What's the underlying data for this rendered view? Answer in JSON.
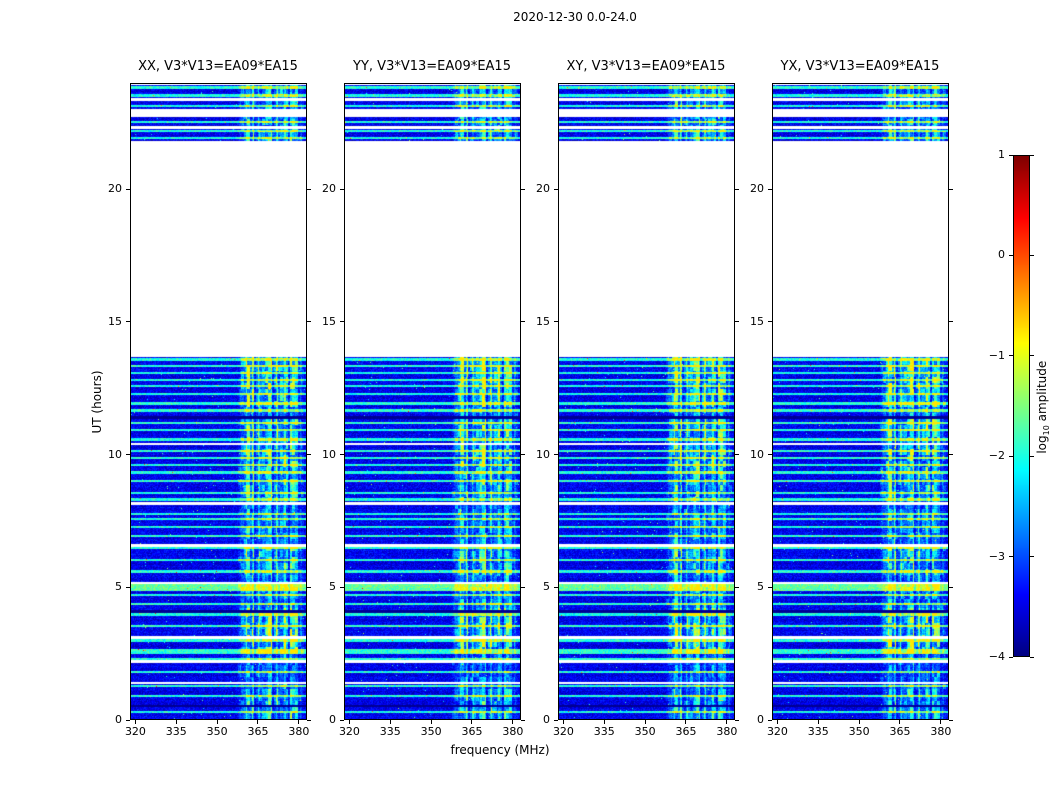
{
  "chart_data": {
    "type": "heatmap",
    "title": "2020-12-30 0.0-24.0",
    "xlabel": "frequency (MHz)",
    "ylabel": "UT (hours)",
    "panels": [
      {
        "title": "XX, V3*V13=EA09*EA15"
      },
      {
        "title": "YY, V3*V13=EA09*EA15"
      },
      {
        "title": "XY, V3*V13=EA09*EA15"
      },
      {
        "title": "YX, V3*V13=EA09*EA15"
      }
    ],
    "x": {
      "min": 318,
      "max": 383,
      "ticks": [
        320,
        335,
        350,
        365,
        380
      ]
    },
    "y": {
      "min": 0,
      "max": 24,
      "ticks": [
        0,
        5,
        10,
        15,
        20
      ]
    },
    "colorbar": {
      "label": "log10 amplitude",
      "label_pre": "log",
      "label_sub": "10",
      "label_post": " amplitude",
      "min": -4,
      "max": 1,
      "ticks": [
        "1",
        "0",
        "−1",
        "−2",
        "−3",
        "−4"
      ],
      "tick_values": [
        1,
        0,
        -1,
        -2,
        -3,
        -4
      ],
      "colormap": "jet"
    },
    "value_range": [
      -4,
      1
    ],
    "data_segments": [
      [
        0,
        13.7
      ],
      [
        21.85,
        22.3
      ],
      [
        22.4,
        22.75
      ],
      [
        23.05,
        23.35
      ],
      [
        23.45,
        23.95
      ]
    ],
    "noise": {
      "base": -3.45,
      "spread": 0.6
    },
    "rfi_band": {
      "fmin": 357.5,
      "fmax": 382,
      "blocks": [
        [
          0,
          1.2,
          1.7
        ],
        [
          1.2,
          2.5,
          1.1
        ],
        [
          2.5,
          4.25,
          2.4
        ],
        [
          4.25,
          5.5,
          1.5
        ],
        [
          5.5,
          6.65,
          2.0
        ],
        [
          6.65,
          8.4,
          1.4
        ],
        [
          8.4,
          9.5,
          1.9
        ],
        [
          9.5,
          11.35,
          2.2
        ],
        [
          11.35,
          11.8,
          1.3
        ],
        [
          11.8,
          13.7,
          2.3
        ],
        [
          21.85,
          24,
          1.6
        ]
      ]
    },
    "stripes": [
      {
        "t": 0.32,
        "type": "bright"
      },
      {
        "t": 0.55,
        "type": "dark"
      },
      {
        "t": 0.92,
        "type": "bright"
      },
      {
        "t": 1.3,
        "type": "bright"
      },
      {
        "t": 1.42,
        "type": "white"
      },
      {
        "t": 1.82,
        "type": "bright"
      },
      {
        "t": 2.22,
        "type": "white",
        "w": 0.05
      },
      {
        "t": 2.32,
        "type": "bright"
      },
      {
        "t": 2.6,
        "type": "bright",
        "w": 0.09
      },
      {
        "t": 3.02,
        "type": "bright"
      },
      {
        "t": 3.12,
        "type": "white"
      },
      {
        "t": 3.55,
        "type": "bright"
      },
      {
        "t": 4.0,
        "type": "bright"
      },
      {
        "t": 4.1,
        "type": "dark"
      },
      {
        "t": 4.38,
        "type": "bright"
      },
      {
        "t": 4.72,
        "type": "bright"
      },
      {
        "t": 5.0,
        "type": "bright",
        "w": 0.13,
        "amp": 1.8
      },
      {
        "t": 5.18,
        "type": "white"
      },
      {
        "t": 5.62,
        "type": "bright"
      },
      {
        "t": 6.05,
        "type": "bright"
      },
      {
        "t": 6.5,
        "type": "bright"
      },
      {
        "t": 6.6,
        "type": "white"
      },
      {
        "t": 6.95,
        "type": "bright"
      },
      {
        "t": 7.28,
        "type": "bright"
      },
      {
        "t": 7.6,
        "type": "bright"
      },
      {
        "t": 7.78,
        "type": "bright"
      },
      {
        "t": 8.18,
        "type": "white",
        "w": 0.06
      },
      {
        "t": 8.32,
        "type": "bright"
      },
      {
        "t": 8.58,
        "type": "bright"
      },
      {
        "t": 9.02,
        "type": "bright"
      },
      {
        "t": 9.35,
        "type": "bright"
      },
      {
        "t": 9.62,
        "type": "bright"
      },
      {
        "t": 9.88,
        "type": "bright"
      },
      {
        "t": 10.15,
        "type": "bright"
      },
      {
        "t": 10.42,
        "type": "white"
      },
      {
        "t": 10.58,
        "type": "bright"
      },
      {
        "t": 10.95,
        "type": "bright"
      },
      {
        "t": 11.22,
        "type": "bright"
      },
      {
        "t": 11.42,
        "type": "dark",
        "w": 0.05
      },
      {
        "t": 11.68,
        "type": "bright"
      },
      {
        "t": 11.95,
        "type": "bright"
      },
      {
        "t": 12.3,
        "type": "bright"
      },
      {
        "t": 12.6,
        "type": "bright"
      },
      {
        "t": 12.82,
        "type": "bright"
      },
      {
        "t": 13.1,
        "type": "bright"
      },
      {
        "t": 13.35,
        "type": "bright"
      },
      {
        "t": 13.6,
        "type": "bright"
      },
      {
        "t": 21.95,
        "type": "bright"
      },
      {
        "t": 22.2,
        "type": "bright"
      },
      {
        "t": 22.55,
        "type": "bright"
      },
      {
        "t": 23.15,
        "type": "bright"
      },
      {
        "t": 23.55,
        "type": "bright"
      },
      {
        "t": 23.85,
        "type": "bright"
      }
    ]
  }
}
